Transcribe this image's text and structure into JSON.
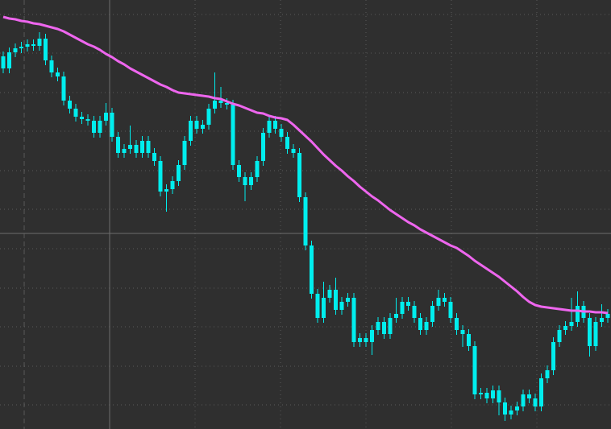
{
  "chart_data": {
    "type": "candlestick",
    "ylim": [
      0,
      533
    ],
    "color": "#00eeee",
    "background": "#2f2f2f",
    "grid": true,
    "open": [
      463,
      448,
      468,
      473,
      475,
      478,
      476,
      485,
      458,
      443,
      438,
      408,
      398,
      388,
      385,
      383,
      368,
      383,
      393,
      363,
      343,
      348,
      353,
      343,
      358,
      343,
      333,
      295,
      298,
      308,
      328,
      358,
      383,
      373,
      378,
      398,
      408,
      405,
      403,
      328,
      313,
      303,
      313,
      333,
      368,
      383,
      373,
      363,
      348,
      343,
      288,
      228,
      168,
      138,
      163,
      173,
      148,
      158,
      163,
      108,
      113,
      108,
      123,
      133,
      118,
      138,
      143,
      158,
      153,
      138,
      123,
      133,
      153,
      163,
      158,
      138,
      123,
      118,
      103,
      43,
      45,
      38,
      48,
      33,
      18,
      23,
      28,
      43,
      38,
      28,
      63,
      73,
      108,
      123,
      128,
      133,
      153,
      138,
      103,
      133,
      138
    ],
    "high": [
      469,
      474,
      479,
      481,
      484,
      484,
      493,
      491,
      464,
      449,
      444,
      414,
      404,
      394,
      391,
      389,
      389,
      405,
      399,
      369,
      354,
      377,
      359,
      364,
      364,
      349,
      339,
      304,
      314,
      334,
      364,
      389,
      389,
      384,
      404,
      443,
      425,
      411,
      409,
      334,
      319,
      319,
      339,
      374,
      389,
      389,
      379,
      369,
      354,
      349,
      294,
      234,
      174,
      183,
      179,
      188,
      164,
      169,
      169,
      119,
      119,
      129,
      139,
      139,
      144,
      163,
      164,
      164,
      159,
      144,
      139,
      159,
      173,
      169,
      164,
      144,
      129,
      124,
      109,
      51,
      51,
      54,
      54,
      39,
      29,
      34,
      49,
      49,
      44,
      69,
      79,
      114,
      129,
      134,
      163,
      171,
      159,
      144,
      139,
      155,
      149
    ],
    "low": [
      442,
      442,
      462,
      467,
      469,
      470,
      470,
      452,
      437,
      432,
      402,
      392,
      382,
      379,
      377,
      362,
      362,
      377,
      357,
      337,
      337,
      342,
      337,
      337,
      337,
      327,
      289,
      270,
      292,
      302,
      322,
      352,
      367,
      367,
      372,
      392,
      399,
      397,
      322,
      307,
      283,
      297,
      307,
      327,
      362,
      367,
      357,
      342,
      337,
      282,
      222,
      162,
      132,
      132,
      157,
      142,
      142,
      152,
      102,
      102,
      102,
      92,
      117,
      112,
      112,
      132,
      137,
      147,
      132,
      117,
      117,
      127,
      147,
      152,
      132,
      117,
      102,
      97,
      37,
      37,
      32,
      32,
      17,
      10,
      12,
      17,
      22,
      32,
      22,
      22,
      57,
      67,
      102,
      117,
      122,
      127,
      132,
      90,
      97,
      127,
      132
    ],
    "close": [
      448,
      468,
      473,
      475,
      478,
      476,
      485,
      458,
      443,
      438,
      408,
      398,
      388,
      385,
      383,
      368,
      383,
      393,
      363,
      343,
      348,
      353,
      343,
      358,
      343,
      333,
      295,
      298,
      308,
      328,
      358,
      383,
      373,
      378,
      398,
      408,
      405,
      403,
      328,
      313,
      303,
      313,
      333,
      368,
      383,
      373,
      363,
      348,
      343,
      288,
      228,
      168,
      138,
      163,
      173,
      148,
      158,
      163,
      108,
      113,
      108,
      123,
      133,
      118,
      138,
      143,
      158,
      153,
      138,
      123,
      133,
      153,
      163,
      158,
      138,
      123,
      118,
      103,
      43,
      45,
      38,
      48,
      33,
      18,
      23,
      28,
      43,
      38,
      28,
      63,
      73,
      108,
      123,
      128,
      133,
      153,
      138,
      103,
      133,
      138,
      143
    ],
    "series": [
      {
        "color": "#ee66ee",
        "values": [
          512,
          510,
          509,
          507,
          506,
          504,
          503,
          501,
          499,
          497,
          494,
          490,
          486,
          482,
          478,
          475,
          471,
          466,
          462,
          457,
          453,
          448,
          444,
          440,
          436,
          432,
          428,
          425,
          421,
          418,
          417,
          416,
          415,
          414,
          413,
          411,
          410,
          407,
          404,
          402,
          399,
          396,
          393,
          392,
          389,
          387,
          386,
          384,
          378,
          371,
          364,
          357,
          349,
          341,
          334,
          327,
          321,
          314,
          308,
          301,
          295,
          289,
          284,
          278,
          272,
          267,
          262,
          257,
          253,
          248,
          244,
          240,
          236,
          232,
          228,
          225,
          220,
          215,
          209,
          204,
          199,
          194,
          189,
          183,
          177,
          171,
          164,
          158,
          154,
          152,
          151,
          150,
          149,
          148,
          147,
          147,
          146,
          146,
          145,
          145,
          144
        ]
      }
    ]
  }
}
